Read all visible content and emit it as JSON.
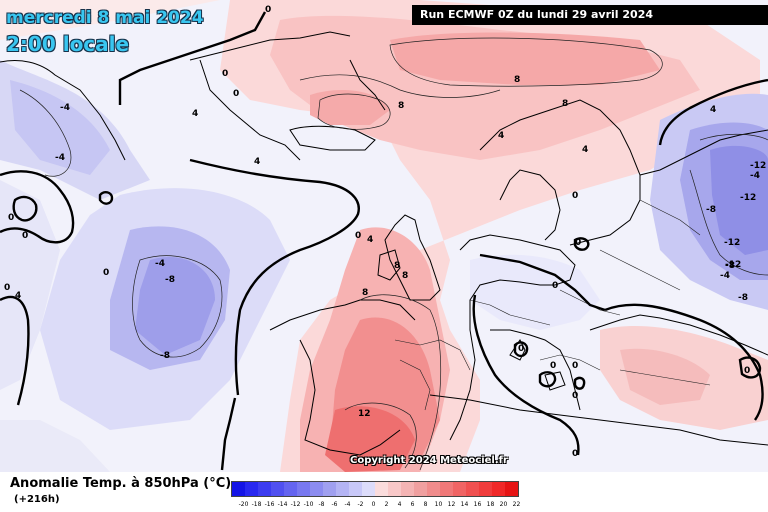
{
  "header": {
    "date_line": "mercredi 8 mai 2024",
    "time_line": "2:00 locale",
    "run_info": "Run ECMWF 0Z du lundi 29 avril 2024"
  },
  "copyright": "Copyright 2024 Meteociel.fr",
  "legend": {
    "title": "Anomalie Temp. à 850hPa (°C)",
    "forecast_hour": "(+216h)",
    "ticks": [
      "-20",
      "-18",
      "-16",
      "-14",
      "-12",
      "-10",
      "-8",
      "-6",
      "-4",
      "-2",
      "0",
      "2",
      "4",
      "6",
      "8",
      "10",
      "12",
      "14",
      "16",
      "18",
      "20",
      "22"
    ],
    "colors": [
      "#1414e6",
      "#2828f0",
      "#3c3cf0",
      "#5050f0",
      "#6464f0",
      "#7878f0",
      "#8c8cf0",
      "#a0a0f0",
      "#b4b4f4",
      "#c8c8f8",
      "#dcdcfa",
      "#fadcdc",
      "#f8c8c8",
      "#f4b4b4",
      "#f0a0a0",
      "#f08c8c",
      "#f07878",
      "#f06464",
      "#f05050",
      "#f03c3c",
      "#f02828",
      "#e61414"
    ]
  },
  "contour_labels": [
    "0",
    "0",
    "0",
    "0",
    "0",
    "0",
    "0",
    "0",
    "0",
    "0",
    "0",
    "0",
    "0",
    "0",
    "0",
    "0",
    "0",
    "4",
    "4",
    "4",
    "4",
    "4",
    "4",
    "4",
    "-4",
    "-4",
    "-4",
    "-4",
    "-4",
    "8",
    "8",
    "8",
    "8",
    "8",
    "8",
    "-8",
    "-8",
    "-8",
    "-8",
    "-8",
    "12",
    "-12",
    "-12",
    "-12",
    "-12"
  ]
}
